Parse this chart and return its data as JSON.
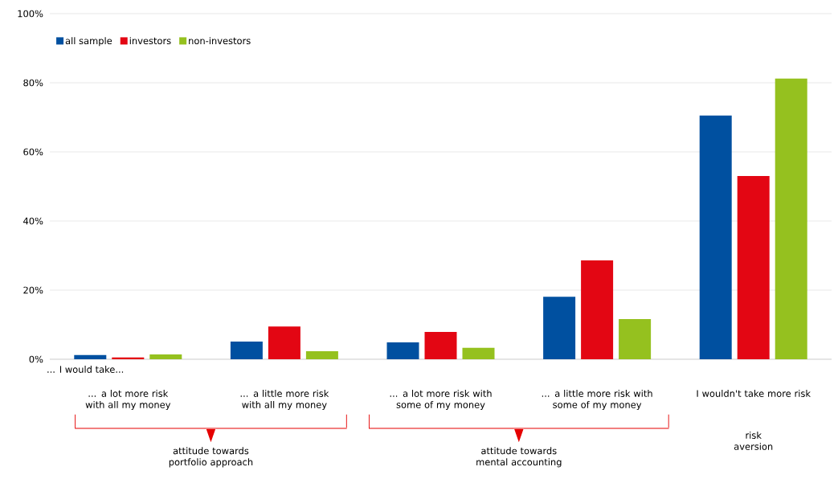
{
  "chart_data": {
    "type": "bar",
    "categories": [
      "... a lot more risk with all my money",
      "... a little more risk with all my money",
      "... a lot more risk with some of my money",
      "... a little more risk with some of my money",
      "I wouldn't take more risk"
    ],
    "series": [
      {
        "name": "all sample",
        "color": "#0050a0",
        "values": [
          1.2,
          5.1,
          4.9,
          18.1,
          70.5
        ]
      },
      {
        "name": "investors",
        "color": "#e30613",
        "values": [
          0.5,
          9.5,
          7.9,
          28.6,
          53.0
        ]
      },
      {
        "name": "non-investors",
        "color": "#95c11f",
        "values": [
          1.4,
          2.3,
          3.3,
          11.6,
          81.2
        ]
      }
    ],
    "ylim": [
      0,
      100
    ],
    "yticks": [
      {
        "value": 0,
        "label": "0%"
      },
      {
        "value": 20,
        "label": "20%"
      },
      {
        "value": 40,
        "label": "40%"
      },
      {
        "value": 60,
        "label": "60%"
      },
      {
        "value": 80,
        "label": "80%"
      },
      {
        "value": 100,
        "label": "100%"
      }
    ],
    "grid": "y",
    "legend": "top left",
    "annotations": [
      "... I would take...",
      "attitude towards portfolio approach",
      "attitude towards mental accounting",
      "risk aversion"
    ]
  }
}
